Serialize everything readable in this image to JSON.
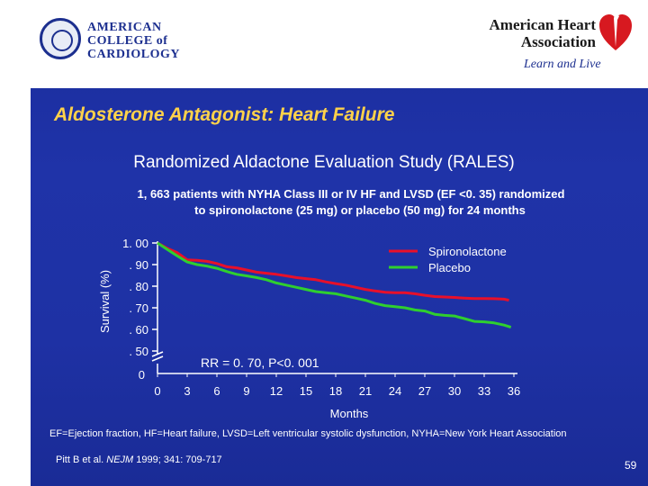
{
  "slide": {
    "title": "Aldosterone Antagonist: Heart Failure",
    "subtitle": "Randomized Aldactone Evaluation Study (RALES)",
    "description_line1": "1, 663 patients with NYHA Class III or IV HF and LVSD (EF <0. 35) randomized",
    "description_line2": "to spironolactone (25 mg) or placebo (50 mg) for 24 months",
    "footnote": "EF=Ejection fraction, HF=Heart failure, LVSD=Left ventricular systolic dysfunction, NYHA=New York Heart Association",
    "citation_prefix": "Pitt B et al. ",
    "citation_journal": "NEJM",
    "citation_suffix": " 1999; 341: 709-717",
    "page_number": "59"
  },
  "logos": {
    "acc_line1": "AMERICAN",
    "acc_line2": "COLLEGE of",
    "acc_line3": "CARDIOLOGY",
    "aha_line1": "American Heart",
    "aha_line2": "Association",
    "aha_tagline": "Learn and Live"
  },
  "colors": {
    "background": "#1f33a8",
    "title": "#ffd24a",
    "spironolactone": "#e8102a",
    "placebo": "#2fcf2f",
    "text": "#ffffff"
  },
  "chart_data": {
    "type": "line",
    "xlabel": "Months",
    "ylabel": "Survival (%)",
    "x_ticks": [
      0,
      3,
      6,
      9,
      12,
      15,
      18,
      21,
      24,
      27,
      30,
      33,
      36
    ],
    "y_ticks": [
      "1. 00",
      ". 90",
      ". 80",
      ". 70",
      ". 60",
      ". 50"
    ],
    "y_zero_label": "0",
    "ylim": [
      0.5,
      1.0
    ],
    "xlim": [
      0,
      36
    ],
    "axis_break": true,
    "legend_position": "top-right",
    "annotation": "RR = 0. 70, P<0. 001",
    "series": [
      {
        "name": "Spironolactone",
        "color": "#e8102a",
        "x": [
          0,
          1,
          2,
          3,
          4,
          5,
          6,
          7,
          8,
          9,
          10,
          11,
          12,
          13,
          14,
          15,
          16,
          17,
          18,
          19,
          20,
          21,
          22,
          23,
          24,
          25,
          26,
          27,
          28,
          29,
          30,
          31,
          32,
          33,
          34,
          35,
          35.5
        ],
        "y": [
          1.0,
          0.975,
          0.955,
          0.922,
          0.92,
          0.915,
          0.905,
          0.89,
          0.885,
          0.875,
          0.865,
          0.86,
          0.855,
          0.848,
          0.84,
          0.835,
          0.83,
          0.82,
          0.812,
          0.805,
          0.795,
          0.785,
          0.778,
          0.772,
          0.77,
          0.77,
          0.765,
          0.758,
          0.752,
          0.75,
          0.748,
          0.745,
          0.743,
          0.743,
          0.742,
          0.74,
          0.735
        ]
      },
      {
        "name": "Placebo",
        "color": "#2fcf2f",
        "x": [
          0,
          1,
          2,
          3,
          4,
          5,
          6,
          7,
          8,
          9,
          10,
          11,
          12,
          13,
          14,
          15,
          16,
          17,
          18,
          19,
          20,
          21,
          22,
          23,
          24,
          25,
          26,
          27,
          28,
          29,
          30,
          31,
          32,
          33,
          34,
          35,
          35.7
        ],
        "y": [
          1.0,
          0.97,
          0.94,
          0.912,
          0.9,
          0.893,
          0.883,
          0.868,
          0.855,
          0.848,
          0.84,
          0.83,
          0.815,
          0.805,
          0.795,
          0.785,
          0.775,
          0.77,
          0.765,
          0.755,
          0.745,
          0.735,
          0.72,
          0.71,
          0.705,
          0.7,
          0.69,
          0.685,
          0.67,
          0.665,
          0.662,
          0.65,
          0.637,
          0.635,
          0.63,
          0.62,
          0.61
        ]
      }
    ]
  }
}
